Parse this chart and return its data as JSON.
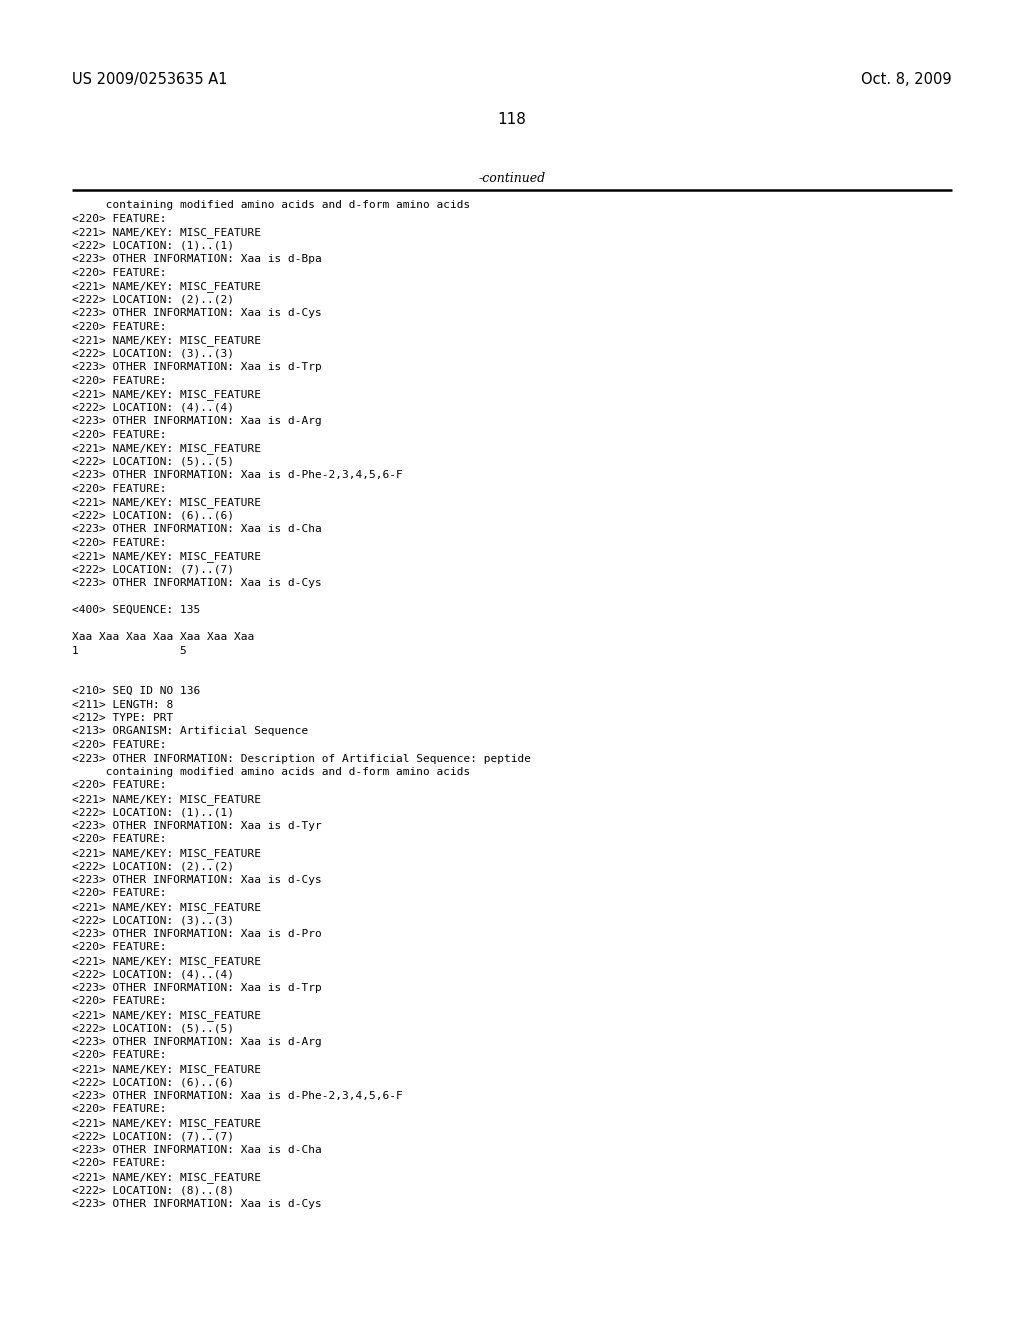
{
  "page_number": "118",
  "header_left": "US 2009/0253635 A1",
  "header_right": "Oct. 8, 2009",
  "continued_label": "-continued",
  "background_color": "#ffffff",
  "text_color": "#000000",
  "lines": [
    "     containing modified amino acids and d-form amino acids",
    "<220> FEATURE:",
    "<221> NAME/KEY: MISC_FEATURE",
    "<222> LOCATION: (1)..(1)",
    "<223> OTHER INFORMATION: Xaa is d-Bpa",
    "<220> FEATURE:",
    "<221> NAME/KEY: MISC_FEATURE",
    "<222> LOCATION: (2)..(2)",
    "<223> OTHER INFORMATION: Xaa is d-Cys",
    "<220> FEATURE:",
    "<221> NAME/KEY: MISC_FEATURE",
    "<222> LOCATION: (3)..(3)",
    "<223> OTHER INFORMATION: Xaa is d-Trp",
    "<220> FEATURE:",
    "<221> NAME/KEY: MISC_FEATURE",
    "<222> LOCATION: (4)..(4)",
    "<223> OTHER INFORMATION: Xaa is d-Arg",
    "<220> FEATURE:",
    "<221> NAME/KEY: MISC_FEATURE",
    "<222> LOCATION: (5)..(5)",
    "<223> OTHER INFORMATION: Xaa is d-Phe-2,3,4,5,6-F",
    "<220> FEATURE:",
    "<221> NAME/KEY: MISC_FEATURE",
    "<222> LOCATION: (6)..(6)",
    "<223> OTHER INFORMATION: Xaa is d-Cha",
    "<220> FEATURE:",
    "<221> NAME/KEY: MISC_FEATURE",
    "<222> LOCATION: (7)..(7)",
    "<223> OTHER INFORMATION: Xaa is d-Cys",
    "",
    "<400> SEQUENCE: 135",
    "",
    "Xaa Xaa Xaa Xaa Xaa Xaa Xaa",
    "1               5",
    "",
    "",
    "<210> SEQ ID NO 136",
    "<211> LENGTH: 8",
    "<212> TYPE: PRT",
    "<213> ORGANISM: Artificial Sequence",
    "<220> FEATURE:",
    "<223> OTHER INFORMATION: Description of Artificial Sequence: peptide",
    "     containing modified amino acids and d-form amino acids",
    "<220> FEATURE:",
    "<221> NAME/KEY: MISC_FEATURE",
    "<222> LOCATION: (1)..(1)",
    "<223> OTHER INFORMATION: Xaa is d-Tyr",
    "<220> FEATURE:",
    "<221> NAME/KEY: MISC_FEATURE",
    "<222> LOCATION: (2)..(2)",
    "<223> OTHER INFORMATION: Xaa is d-Cys",
    "<220> FEATURE:",
    "<221> NAME/KEY: MISC_FEATURE",
    "<222> LOCATION: (3)..(3)",
    "<223> OTHER INFORMATION: Xaa is d-Pro",
    "<220> FEATURE:",
    "<221> NAME/KEY: MISC_FEATURE",
    "<222> LOCATION: (4)..(4)",
    "<223> OTHER INFORMATION: Xaa is d-Trp",
    "<220> FEATURE:",
    "<221> NAME/KEY: MISC_FEATURE",
    "<222> LOCATION: (5)..(5)",
    "<223> OTHER INFORMATION: Xaa is d-Arg",
    "<220> FEATURE:",
    "<221> NAME/KEY: MISC_FEATURE",
    "<222> LOCATION: (6)..(6)",
    "<223> OTHER INFORMATION: Xaa is d-Phe-2,3,4,5,6-F",
    "<220> FEATURE:",
    "<221> NAME/KEY: MISC_FEATURE",
    "<222> LOCATION: (7)..(7)",
    "<223> OTHER INFORMATION: Xaa is d-Cha",
    "<220> FEATURE:",
    "<221> NAME/KEY: MISC_FEATURE",
    "<222> LOCATION: (8)..(8)",
    "<223> OTHER INFORMATION: Xaa is d-Cys"
  ]
}
